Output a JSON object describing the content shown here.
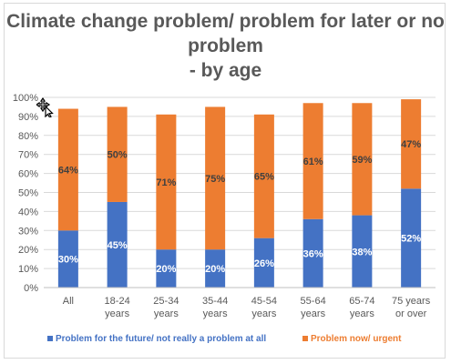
{
  "chart_data": {
    "type": "bar",
    "stacked": true,
    "title": "Climate change problem/ problem for later or no problem\n- by age",
    "categories": [
      [
        "All"
      ],
      [
        "18-24",
        "years"
      ],
      [
        "25-34",
        "years"
      ],
      [
        "35-44",
        "years"
      ],
      [
        "45-54",
        "years"
      ],
      [
        "55-64",
        "years"
      ],
      [
        "65-74",
        "years"
      ],
      [
        "75 years",
        "or over"
      ]
    ],
    "series": [
      {
        "name": "Problem for the future/ not really a problem at all",
        "color": "#4472c4",
        "values": [
          30,
          45,
          20,
          20,
          26,
          36,
          38,
          52
        ]
      },
      {
        "name": "Problem now/ urgent",
        "color": "#ed7d31",
        "values": [
          64,
          50,
          71,
          75,
          65,
          61,
          59,
          47
        ]
      }
    ],
    "data_label_suffix": "%",
    "ylim": [
      0,
      100
    ],
    "yticks": [
      "0%",
      "10%",
      "20%",
      "30%",
      "40%",
      "50%",
      "60%",
      "70%",
      "80%",
      "90%",
      "100%"
    ],
    "legend_position": "bottom",
    "grid": true
  },
  "cursor_icon": "move-cursor-icon"
}
